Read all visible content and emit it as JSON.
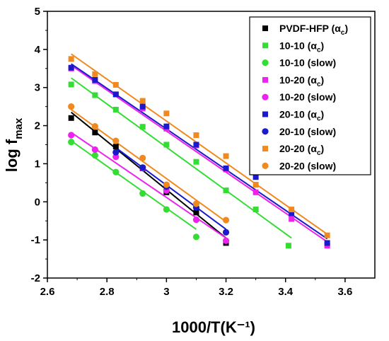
{
  "chart_data": {
    "type": "scatter",
    "xlabel": "1000/T(K⁻¹)",
    "ylabel": "log f",
    "ylabel_sub": "max",
    "xlim": [
      2.6,
      3.7
    ],
    "ylim": [
      -2,
      5
    ],
    "xticks": [
      "2.6",
      "2.8",
      "3",
      "3.2",
      "3.4",
      "3.6"
    ],
    "yticks": [
      "-2",
      "-1",
      "0",
      "1",
      "2",
      "3",
      "4",
      "5"
    ],
    "legend_position": "top-right",
    "series": [
      {
        "name": "PVDF-HFP (αc)",
        "label_main": "PVDF-HFP (α",
        "label_sub": "c",
        "label_end": ")",
        "color": "#000000",
        "marker": "square",
        "points": [
          [
            2.68,
            2.2
          ],
          [
            2.76,
            1.82
          ],
          [
            2.83,
            1.45
          ],
          [
            2.92,
            0.88
          ],
          [
            3.0,
            0.25
          ],
          [
            3.1,
            -0.28
          ],
          [
            3.2,
            -1.08
          ]
        ],
        "fit": [
          [
            2.68,
            2.35
          ],
          [
            3.2,
            -0.95
          ]
        ]
      },
      {
        "name": "10-10 (αc)",
        "label_main": "10-10 (α",
        "label_sub": "c",
        "label_end": ")",
        "color": "#33dd33",
        "marker": "square",
        "points": [
          [
            2.68,
            3.08
          ],
          [
            2.76,
            2.8
          ],
          [
            2.83,
            2.42
          ],
          [
            2.92,
            1.97
          ],
          [
            3.0,
            1.5
          ],
          [
            3.1,
            1.05
          ],
          [
            3.2,
            0.3
          ],
          [
            3.3,
            -0.2
          ],
          [
            3.41,
            -1.15
          ]
        ],
        "fit": [
          [
            2.68,
            3.25
          ],
          [
            3.42,
            -0.95
          ]
        ]
      },
      {
        "name": "10-10 (slow)",
        "label_main": "10-10 (slow)",
        "label_sub": "",
        "label_end": "",
        "color": "#33dd33",
        "marker": "circle",
        "points": [
          [
            2.68,
            1.57
          ],
          [
            2.76,
            1.22
          ],
          [
            2.83,
            0.78
          ],
          [
            2.92,
            0.22
          ],
          [
            3.0,
            -0.2
          ],
          [
            3.1,
            -0.92
          ]
        ],
        "fit": [
          [
            2.68,
            1.6
          ],
          [
            3.1,
            -0.72
          ]
        ]
      },
      {
        "name": "10-20 (αc)",
        "label_main": "10-20  (α",
        "label_sub": "c",
        "label_end": ")",
        "color": "#ee22ee",
        "marker": "square",
        "points": [
          [
            2.68,
            3.5
          ],
          [
            2.76,
            3.17
          ],
          [
            2.83,
            2.82
          ],
          [
            2.92,
            2.45
          ],
          [
            3.0,
            1.92
          ],
          [
            3.1,
            1.48
          ],
          [
            3.2,
            0.85
          ],
          [
            3.3,
            0.25
          ],
          [
            3.42,
            -0.45
          ],
          [
            3.54,
            -1.15
          ]
        ],
        "fit": [
          [
            2.68,
            3.58
          ],
          [
            3.54,
            -1.05
          ]
        ]
      },
      {
        "name": "10-20 (slow)",
        "label_main": "10-20 (slow)",
        "label_sub": "",
        "label_end": "",
        "color": "#ee22ee",
        "marker": "circle",
        "points": [
          [
            2.68,
            1.75
          ],
          [
            2.76,
            1.37
          ],
          [
            2.83,
            1.18
          ],
          [
            2.92,
            0.88
          ],
          [
            3.0,
            0.3
          ],
          [
            3.1,
            -0.47
          ],
          [
            3.2,
            -1.02
          ]
        ],
        "fit": [
          [
            2.68,
            1.82
          ],
          [
            3.2,
            -0.95
          ]
        ]
      },
      {
        "name": "20-10 (αc)",
        "label_main": "20-10 (α",
        "label_sub": "c",
        "label_end": ")",
        "color": "#1a1acc",
        "marker": "square",
        "points": [
          [
            2.68,
            3.52
          ],
          [
            2.76,
            3.2
          ],
          [
            2.83,
            2.82
          ],
          [
            2.92,
            2.5
          ],
          [
            3.0,
            1.98
          ],
          [
            3.1,
            1.5
          ],
          [
            3.2,
            0.88
          ],
          [
            3.3,
            0.65
          ],
          [
            3.42,
            -0.3
          ],
          [
            3.54,
            -1.08
          ]
        ],
        "fit": [
          [
            2.68,
            3.62
          ],
          [
            3.54,
            -0.97
          ]
        ]
      },
      {
        "name": "20-10 (slow)",
        "label_main": "20-10  (slow)",
        "label_sub": "",
        "label_end": "",
        "color": "#1a1acc",
        "marker": "circle",
        "points": [
          [
            2.83,
            1.3
          ],
          [
            2.92,
            0.9
          ],
          [
            3.0,
            0.4
          ],
          [
            3.1,
            -0.15
          ],
          [
            3.2,
            -0.8
          ]
        ],
        "fit": [
          [
            2.83,
            1.42
          ],
          [
            3.2,
            -0.72
          ]
        ]
      },
      {
        "name": "20-20 (αc)",
        "label_main": "20-20 (α",
        "label_sub": "c",
        "label_end": ")",
        "color": "#f08a20",
        "marker": "square",
        "points": [
          [
            2.68,
            3.75
          ],
          [
            2.76,
            3.35
          ],
          [
            2.83,
            3.07
          ],
          [
            2.92,
            2.65
          ],
          [
            3.0,
            2.32
          ],
          [
            3.1,
            1.75
          ],
          [
            3.2,
            1.2
          ],
          [
            3.3,
            0.45
          ],
          [
            3.42,
            -0.2
          ],
          [
            3.54,
            -0.88
          ]
        ],
        "fit": [
          [
            2.68,
            3.88
          ],
          [
            3.54,
            -0.85
          ]
        ]
      },
      {
        "name": "20-20 (slow)",
        "label_main": "20-20 (slow)",
        "label_sub": "",
        "label_end": "",
        "color": "#f08a20",
        "marker": "circle",
        "points": [
          [
            2.68,
            2.5
          ],
          [
            2.76,
            1.98
          ],
          [
            2.83,
            1.6
          ],
          [
            2.92,
            1.15
          ],
          [
            3.0,
            0.45
          ],
          [
            3.1,
            -0.05
          ],
          [
            3.2,
            -0.48
          ]
        ],
        "fit": [
          [
            2.68,
            2.42
          ],
          [
            3.2,
            -0.52
          ]
        ]
      }
    ]
  }
}
